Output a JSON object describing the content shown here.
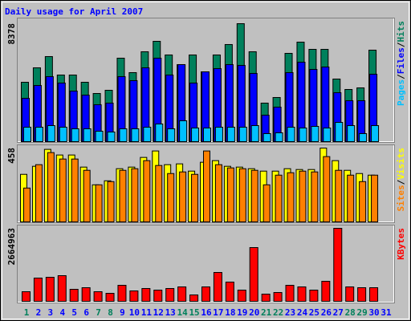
{
  "title": "Daily usage for April 2007",
  "legend_separator": "/",
  "chart_data": [
    {
      "type": "bar",
      "ylim": [
        0,
        8378
      ],
      "yticks": [
        8378
      ],
      "series": [
        {
          "name": "Hits",
          "color": "#00805c",
          "values": [
            4218,
            5244,
            6042,
            4731,
            4731,
            4218,
            3420,
            3648,
            5928,
            4902,
            6384,
            7125,
            6156,
            5472,
            6156,
            4959,
            6156,
            6897,
            8378,
            6384,
            2736,
            3135,
            6270,
            7068,
            6555,
            6555,
            4446,
            3705,
            3819,
            6498,
            null
          ]
        },
        {
          "name": "Files",
          "color": "#0000ff",
          "values": [
            3078,
            3990,
            4617,
            4161,
            3591,
            3306,
            2622,
            2736,
            4617,
            4332,
            5244,
            5928,
            4731,
            5472,
            4161,
            4959,
            5187,
            5472,
            5415,
            4845,
            1881,
            2451,
            4902,
            5643,
            5130,
            5301,
            3477,
            2907,
            2907,
            4788,
            null
          ]
        },
        {
          "name": "Pages",
          "color": "#00c0ff",
          "values": [
            1026,
            1026,
            1140,
            1026,
            912,
            912,
            741,
            684,
            912,
            912,
            1026,
            1254,
            912,
            1482,
            969,
            969,
            1026,
            1026,
            1026,
            1140,
            570,
            627,
            1026,
            969,
            1083,
            969,
            1368,
            1140,
            570,
            1140,
            null
          ]
        }
      ]
    },
    {
      "type": "bar",
      "ylim": [
        0,
        458
      ],
      "yticks": [
        458
      ],
      "series": [
        {
          "name": "Visits",
          "color": "#ffff00",
          "values": [
            295,
            345,
            450,
            415,
            415,
            340,
            230,
            255,
            330,
            340,
            400,
            440,
            355,
            360,
            315,
            370,
            380,
            345,
            340,
            330,
            315,
            315,
            330,
            325,
            325,
            458,
            380,
            320,
            300,
            290,
            null
          ]
        },
        {
          "name": "Sites",
          "color": "#ff8000",
          "values": [
            210,
            355,
            430,
            390,
            390,
            320,
            230,
            250,
            320,
            330,
            380,
            350,
            300,
            310,
            295,
            440,
            355,
            335,
            330,
            320,
            230,
            290,
            305,
            315,
            310,
            405,
            320,
            290,
            250,
            290,
            null
          ]
        }
      ]
    },
    {
      "type": "bar",
      "ylim": [
        0,
        2664963
      ],
      "yticks": [
        2664963
      ],
      "categories": [
        "1",
        "2",
        "3",
        "4",
        "5",
        "6",
        "7",
        "8",
        "9",
        "10",
        "11",
        "12",
        "13",
        "14",
        "15",
        "16",
        "17",
        "18",
        "19",
        "20",
        "21",
        "22",
        "23",
        "24",
        "25",
        "26",
        "27",
        "28",
        "29",
        "30",
        "31"
      ],
      "category_colors": [
        "#00805c",
        "#0000ff",
        "#0000ff",
        "#0000ff",
        "#0000ff",
        "#0000ff",
        "#00805c",
        "#00805c",
        "#0000ff",
        "#0000ff",
        "#0000ff",
        "#0000ff",
        "#0000ff",
        "#00805c",
        "#00805c",
        "#0000ff",
        "#0000ff",
        "#0000ff",
        "#0000ff",
        "#0000ff",
        "#00805c",
        "#00805c",
        "#0000ff",
        "#0000ff",
        "#0000ff",
        "#0000ff",
        "#0000ff",
        "#00805c",
        "#00805c",
        "#0000ff",
        "#0000ff"
      ],
      "series": [
        {
          "name": "KBytes",
          "color": "#ff0000",
          "values": [
            351420,
            849265,
            878550,
            937120,
            439275,
            497845,
            351420,
            292850,
            585700,
            380705,
            468560,
            409990,
            468560,
            527130,
            234280,
            527130,
            1054260,
            702840,
            409990,
            1962095,
            263565,
            322135,
            585700,
            527130,
            409990,
            732125,
            2664963,
            527130,
            497845,
            497845,
            null
          ]
        }
      ]
    }
  ]
}
